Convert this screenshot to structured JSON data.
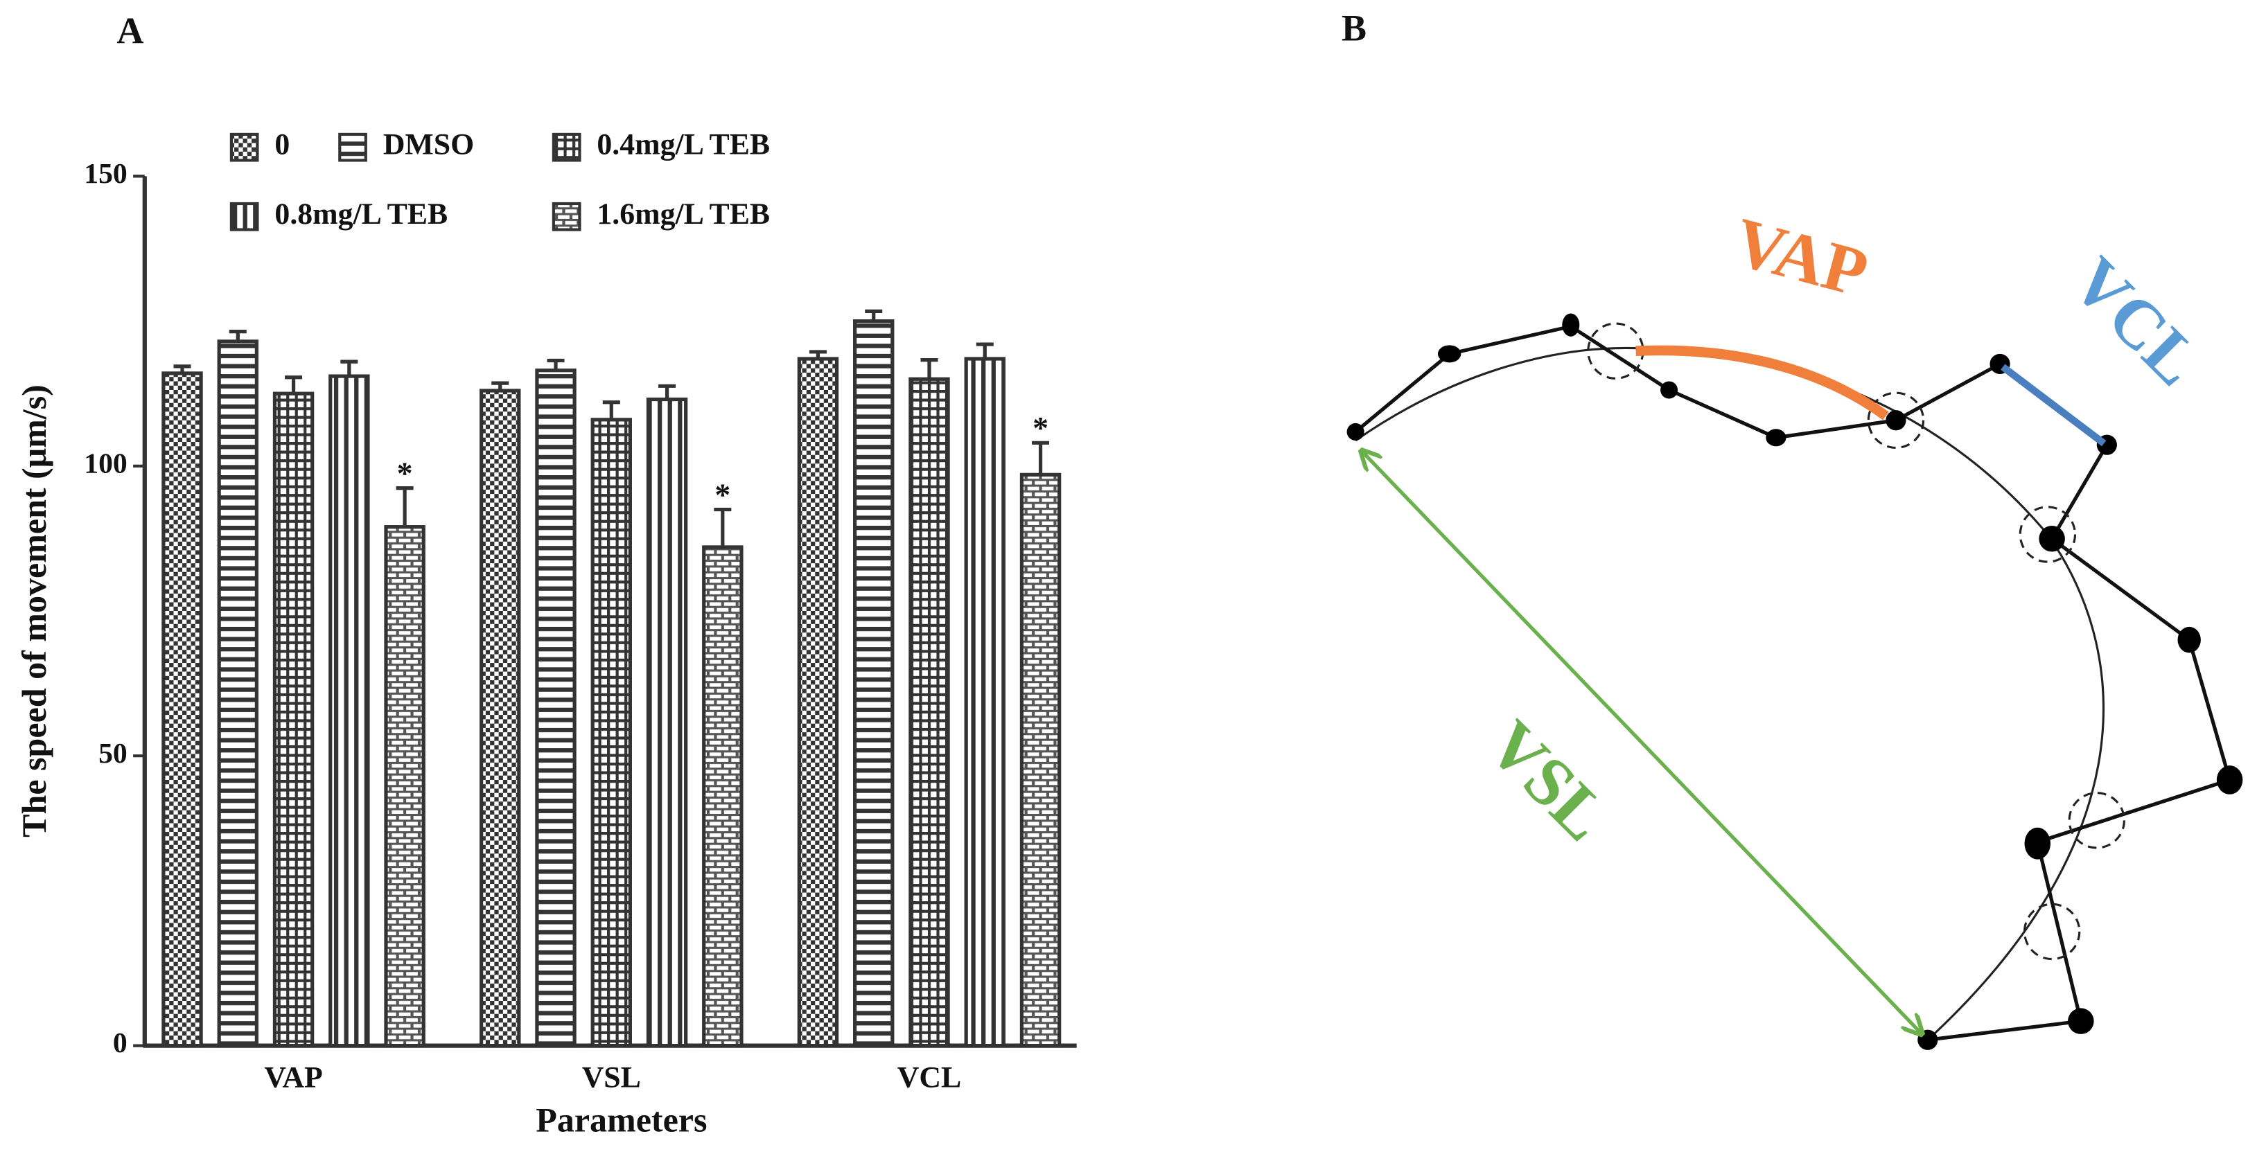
{
  "chart_data": {
    "type": "bar",
    "title": "A",
    "xlabel": "Parameters",
    "ylabel": "The speed of movement (μm/s)",
    "categories": [
      "VAP",
      "VSL",
      "VCL"
    ],
    "ylim": [
      0,
      150
    ],
    "yticks": [
      0,
      50,
      100,
      150
    ],
    "grid": false,
    "series": [
      {
        "name": "0",
        "color": "#333333",
        "pattern": "checker",
        "values": [
          116,
          113,
          118.5
        ],
        "errors": [
          1.2,
          1.3,
          1.2
        ]
      },
      {
        "name": "DMSO",
        "color": "#333333",
        "pattern": "hlines",
        "values": [
          121.5,
          116.5,
          125
        ],
        "errors": [
          1.7,
          1.7,
          1.7
        ]
      },
      {
        "name": "0.4mg/L TEB",
        "color": "#333333",
        "pattern": "grid",
        "values": [
          112.5,
          108,
          115
        ],
        "errors": [
          2.8,
          3,
          3.3
        ]
      },
      {
        "name": "0.8mg/L TEB",
        "color": "#333333",
        "pattern": "vlines",
        "values": [
          115.5,
          111.5,
          118.5
        ],
        "errors": [
          2.5,
          2.3,
          2.5
        ]
      },
      {
        "name": "1.6mg/L TEB",
        "color": "#333333",
        "pattern": "brick",
        "values": [
          89.5,
          86,
          98.5
        ],
        "errors": [
          6.7,
          6.5,
          5.5
        ],
        "significance": [
          "*",
          "*",
          "*"
        ]
      }
    ]
  },
  "diagram": {
    "title": "B",
    "labels": {
      "vap": "VAP",
      "vcl": "VCL",
      "vsl": "VSL"
    }
  }
}
